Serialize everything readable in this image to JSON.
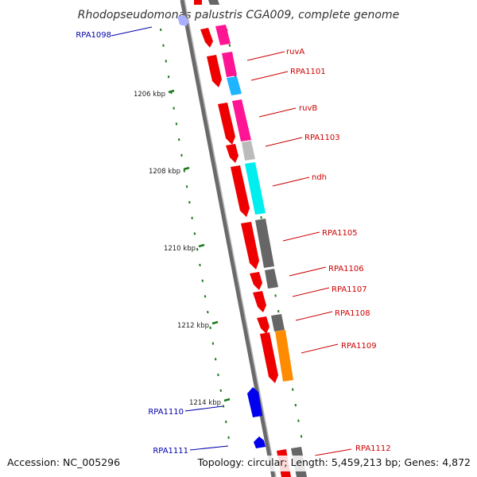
{
  "title": "Rhodopseudomonas palustris CGA009, complete genome",
  "footer": {
    "accession": "Accession: NC_005296",
    "stats": "Topology: circular; Length: 5,459,213 bp; Genes: 4,872"
  },
  "colors": {
    "label_red": "#cc0000",
    "label_blue": "#0000aa",
    "tick_green": "#1a7a1a",
    "backbone": "#8a8a8a"
  },
  "kbp_ticks": [
    "1206 kbp",
    "1208 kbp",
    "1210 kbp",
    "1212 kbp",
    "1214 kbp"
  ],
  "genes": {
    "RPA1098": "RPA1098",
    "ruvA": "ruvA",
    "RPA1101": "RPA1101",
    "ruvB": "ruvB",
    "RPA1103": "RPA1103",
    "ndh": "ndh",
    "RPA1105": "RPA1105",
    "RPA1106": "RPA1106",
    "RPA1107": "RPA1107",
    "RPA1108": "RPA1108",
    "RPA1109": "RPA1109",
    "RPA1110": "RPA1110",
    "RPA1111": "RPA1111",
    "RPA1112": "RPA1112"
  }
}
